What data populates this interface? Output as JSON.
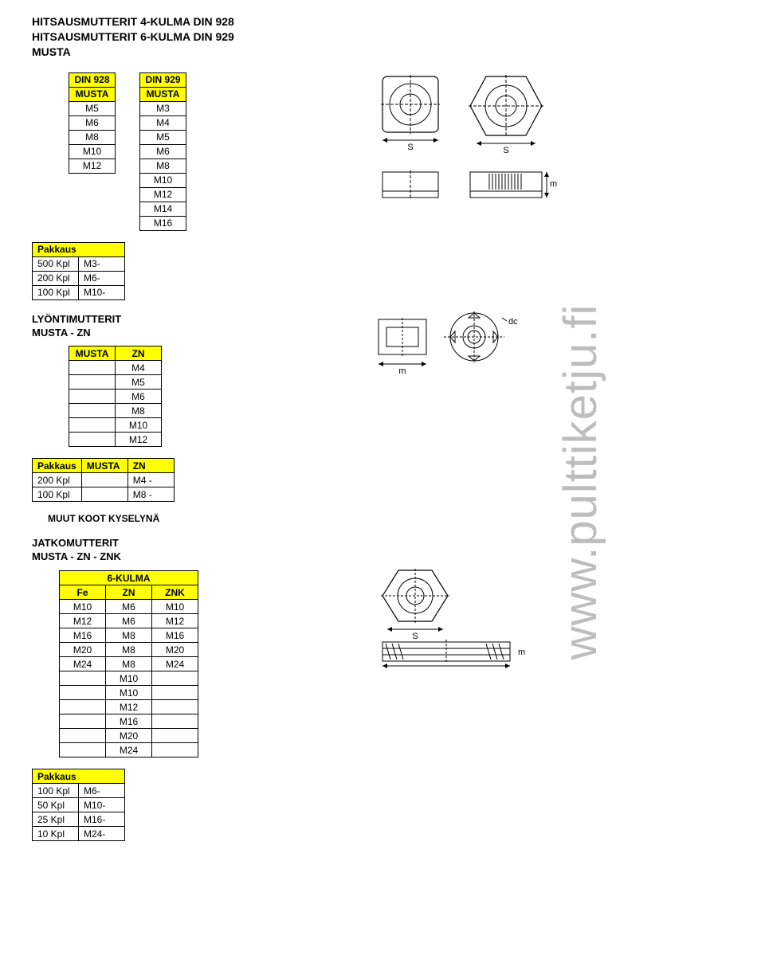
{
  "headings": {
    "h1_l1": "HITSAUSMUTTERIT 4-KULMA DIN 928",
    "h1_l2": "HITSAUSMUTTERIT 6-KULMA DIN 929",
    "h1_l3": "MUSTA",
    "s2_l1": "LYÖNTIMUTTERIT",
    "s2_l2": "MUSTA - ZN",
    "s3_l1": "JATKOMUTTERIT",
    "s3_l2": "MUSTA - ZN - ZNK",
    "kysely": "MUUT KOOT KYSELYNÄ",
    "vertical": "www.pulttiketju.fi",
    "pak_label": "Pakkaus"
  },
  "din928": {
    "head_top": "DIN 928",
    "head_sub": "MUSTA",
    "rows": [
      "M5",
      "M6",
      "M8",
      "M10",
      "M12"
    ]
  },
  "din929": {
    "head_top": "DIN 929",
    "head_sub": "MUSTA",
    "rows": [
      "M3",
      "M4",
      "M5",
      "M6",
      "M8",
      "M10",
      "M12",
      "M14",
      "M16"
    ]
  },
  "pak1": {
    "rows": [
      [
        "500 Kpl",
        "M3-"
      ],
      [
        "200 Kpl",
        "M6-"
      ],
      [
        "100 Kpl",
        "M10-"
      ]
    ]
  },
  "lyonti": {
    "head_l": "MUSTA",
    "head_r": "ZN",
    "rows": [
      "M4",
      "M5",
      "M6",
      "M8",
      "M10",
      "M12"
    ]
  },
  "pak2": {
    "head": [
      "Pakkaus",
      "MUSTA",
      "ZN"
    ],
    "rows": [
      [
        "200 Kpl",
        "",
        "M4 -"
      ],
      [
        "100 Kpl",
        "",
        "M8 -"
      ]
    ]
  },
  "jatko": {
    "title": "6-KULMA",
    "head": [
      "Fe",
      "ZN",
      "ZNK"
    ],
    "rows": [
      [
        "M10",
        "M6",
        "M10"
      ],
      [
        "M12",
        "M6",
        "M12"
      ],
      [
        "M16",
        "M8",
        "M16"
      ],
      [
        "M20",
        "M8",
        "M20"
      ],
      [
        "M24",
        "M8",
        "M24"
      ],
      [
        "",
        "M10",
        ""
      ],
      [
        "",
        "M10",
        ""
      ],
      [
        "",
        "M12",
        ""
      ],
      [
        "",
        "M16",
        ""
      ],
      [
        "",
        "M20",
        ""
      ],
      [
        "",
        "M24",
        ""
      ]
    ]
  },
  "pak3": {
    "rows": [
      [
        "100 Kpl",
        "M6-"
      ],
      [
        "50 Kpl",
        "M10-"
      ],
      [
        "25 Kpl",
        "M16-"
      ],
      [
        "10 Kpl",
        "M24-"
      ]
    ]
  },
  "style": {
    "header_bg": "#ffff00",
    "border_color": "#000000",
    "vertical_color": "#bdbdbd",
    "vertical_fontsize": 58,
    "body_fontsize": 12,
    "heading_fontsize": 14
  }
}
